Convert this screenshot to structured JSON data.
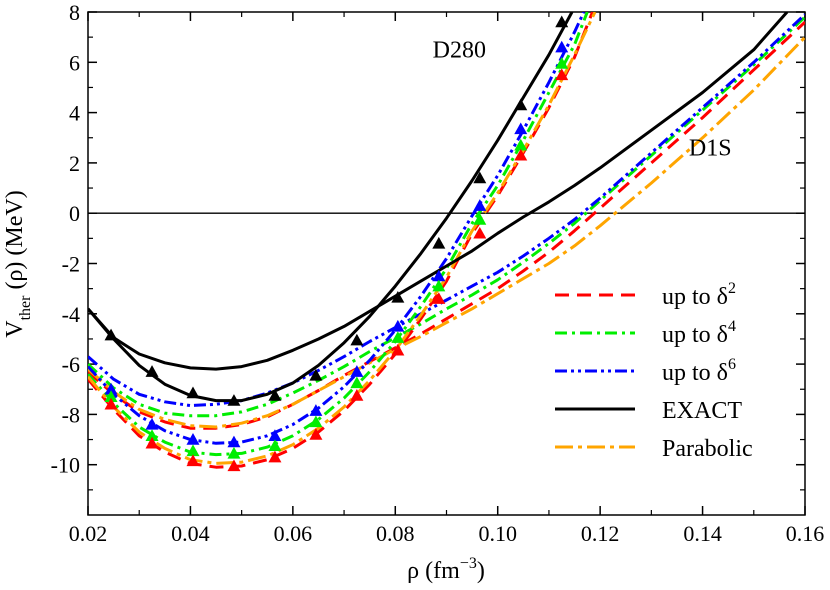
{
  "chart_data": {
    "type": "line",
    "xlim": [
      0.02,
      0.16
    ],
    "ylim": [
      -12,
      8
    ],
    "x_ticks": [
      0.02,
      0.04,
      0.06,
      0.08,
      0.1,
      0.12,
      0.14,
      0.16
    ],
    "x_tick_labels": [
      "0.02",
      "0.04",
      "0.06",
      "0.08",
      "0.10",
      "0.12",
      "0.14",
      "0.16"
    ],
    "y_ticks": [
      -10,
      -8,
      -6,
      -4,
      -2,
      0,
      2,
      4,
      6,
      8
    ],
    "y_tick_labels": [
      "-10",
      "-8",
      "-6",
      "-4",
      "-2",
      "0",
      "2",
      "4",
      "6",
      "8"
    ],
    "xlabel": {
      "main": "ρ (fm",
      "sup": "−3",
      "close": ")"
    },
    "ylabel": {
      "main": "V",
      "sub": "ther",
      "rest": " (ρ) (MeV)"
    },
    "zero_line": 0,
    "annotations": [
      {
        "name": "annotation-d280",
        "text": "D280",
        "x": 0.0925,
        "y": 6.2
      },
      {
        "name": "annotation-d1s",
        "text": "D1S",
        "x": 0.1415,
        "y": 2.3
      }
    ],
    "legend": {
      "position": "bottom-right",
      "entries": [
        {
          "name": "legend-up-to-d2",
          "label": "up to δ",
          "sup": "2",
          "color": "#ff0000",
          "dash": "14 8"
        },
        {
          "name": "legend-up-to-d4",
          "label": "up to δ",
          "sup": "4",
          "color": "#00ee00",
          "dash": "12 5 3 5"
        },
        {
          "name": "legend-up-to-d6",
          "label": "up to  δ",
          "sup": "6",
          "color": "#0000ff",
          "dash": "12 4 3 4 3 4"
        },
        {
          "name": "legend-exact",
          "label": "EXACT",
          "sup": "",
          "color": "#000000",
          "dash": ""
        },
        {
          "name": "legend-parabolic",
          "label": "Parabolic",
          "sup": "",
          "color": "#ffa500",
          "dash": "18 5 4 5"
        }
      ]
    },
    "series": [
      {
        "name": "D1S up to δ²",
        "model": "D1S",
        "color": "#ff0000",
        "dash": "14 8",
        "markers": false,
        "x": [
          0.02,
          0.025,
          0.03,
          0.035,
          0.04,
          0.045,
          0.05,
          0.055,
          0.06,
          0.065,
          0.07,
          0.075,
          0.08,
          0.085,
          0.09,
          0.095,
          0.1,
          0.105,
          0.11,
          0.115,
          0.12,
          0.13,
          0.14,
          0.15,
          0.16
        ],
        "y": [
          -6.3,
          -7.2,
          -7.9,
          -8.3,
          -8.55,
          -8.55,
          -8.4,
          -8.1,
          -7.6,
          -7.05,
          -6.45,
          -5.9,
          -5.35,
          -4.8,
          -4.2,
          -3.6,
          -3.0,
          -2.3,
          -1.55,
          -0.7,
          0.2,
          2.0,
          3.8,
          5.7,
          7.6
        ]
      },
      {
        "name": "D1S up to δ⁴",
        "model": "D1S",
        "color": "#00ee00",
        "dash": "12 5 3 5",
        "markers": false,
        "x": [
          0.02,
          0.025,
          0.03,
          0.035,
          0.04,
          0.045,
          0.05,
          0.055,
          0.06,
          0.065,
          0.07,
          0.075,
          0.08,
          0.085,
          0.09,
          0.095,
          0.1,
          0.105,
          0.11,
          0.115,
          0.12,
          0.13,
          0.14,
          0.15,
          0.16
        ],
        "y": [
          -6.0,
          -6.95,
          -7.6,
          -7.95,
          -8.05,
          -8.05,
          -7.9,
          -7.6,
          -7.15,
          -6.65,
          -6.1,
          -5.5,
          -4.95,
          -4.4,
          -3.8,
          -3.25,
          -2.65,
          -1.95,
          -1.2,
          -0.4,
          0.5,
          2.3,
          4.1,
          5.9,
          7.8
        ]
      },
      {
        "name": "D1S up to δ⁶",
        "model": "D1S",
        "color": "#0000ff",
        "dash": "12 4 3 4 3 4",
        "markers": false,
        "x": [
          0.02,
          0.025,
          0.03,
          0.035,
          0.04,
          0.045,
          0.05,
          0.055,
          0.06,
          0.065,
          0.07,
          0.075,
          0.08,
          0.085,
          0.09,
          0.095,
          0.1,
          0.105,
          0.11,
          0.115,
          0.12,
          0.13,
          0.14,
          0.15,
          0.16
        ],
        "y": [
          -5.7,
          -6.6,
          -7.2,
          -7.5,
          -7.65,
          -7.6,
          -7.45,
          -7.15,
          -6.75,
          -6.25,
          -5.7,
          -5.1,
          -4.55,
          -4.0,
          -3.45,
          -2.9,
          -2.35,
          -1.7,
          -1.0,
          -0.25,
          0.6,
          2.4,
          4.2,
          6.0,
          7.9
        ]
      },
      {
        "name": "D1S EXACT",
        "model": "D1S",
        "color": "#000000",
        "dash": "",
        "markers": false,
        "x": [
          0.02,
          0.025,
          0.03,
          0.035,
          0.04,
          0.045,
          0.05,
          0.055,
          0.06,
          0.065,
          0.07,
          0.075,
          0.08,
          0.085,
          0.09,
          0.095,
          0.1,
          0.105,
          0.11,
          0.115,
          0.12,
          0.13,
          0.14,
          0.15,
          0.1565
        ],
        "y": [
          -3.8,
          -4.95,
          -5.6,
          -5.95,
          -6.15,
          -6.2,
          -6.1,
          -5.85,
          -5.45,
          -5.0,
          -4.5,
          -3.9,
          -3.3,
          -2.7,
          -2.1,
          -1.5,
          -0.8,
          -0.15,
          0.45,
          1.1,
          1.8,
          3.3,
          4.8,
          6.5,
          8.0
        ]
      },
      {
        "name": "D1S Parabolic",
        "model": "D1S",
        "color": "#ffa500",
        "dash": "18 5 4 5",
        "markers": false,
        "x": [
          0.02,
          0.025,
          0.03,
          0.035,
          0.04,
          0.045,
          0.05,
          0.055,
          0.06,
          0.065,
          0.07,
          0.075,
          0.08,
          0.085,
          0.09,
          0.095,
          0.1,
          0.105,
          0.11,
          0.115,
          0.12,
          0.13,
          0.14,
          0.15,
          0.16
        ],
        "y": [
          -6.2,
          -7.1,
          -7.8,
          -8.2,
          -8.45,
          -8.5,
          -8.35,
          -8.05,
          -7.6,
          -7.05,
          -6.5,
          -5.95,
          -5.4,
          -4.9,
          -4.35,
          -3.8,
          -3.2,
          -2.6,
          -2.0,
          -1.3,
          -0.5,
          1.2,
          3.0,
          4.9,
          7.0
        ]
      },
      {
        "name": "D280 up to δ²",
        "model": "D280",
        "color": "#ff0000",
        "dash": "14 8",
        "markers": true,
        "x": [
          0.02,
          0.025,
          0.03,
          0.035,
          0.04,
          0.045,
          0.05,
          0.055,
          0.06,
          0.065,
          0.07,
          0.075,
          0.08,
          0.085,
          0.09,
          0.095,
          0.1,
          0.105,
          0.11,
          0.115,
          0.1185
        ],
        "y": [
          -6.6,
          -7.8,
          -8.85,
          -9.5,
          -9.95,
          -10.1,
          -10.05,
          -9.8,
          -9.35,
          -8.7,
          -7.85,
          -6.8,
          -5.6,
          -4.2,
          -2.7,
          -0.8,
          0.7,
          2.4,
          4.2,
          6.2,
          8.0
        ]
      },
      {
        "name": "D280 up to δ⁴",
        "model": "D280",
        "color": "#00ee00",
        "dash": "12 5 3 5",
        "markers": true,
        "x": [
          0.02,
          0.025,
          0.03,
          0.035,
          0.04,
          0.045,
          0.05,
          0.055,
          0.06,
          0.065,
          0.07,
          0.075,
          0.08,
          0.085,
          0.09,
          0.095,
          0.1,
          0.105,
          0.11,
          0.115,
          0.1175
        ],
        "y": [
          -6.4,
          -7.55,
          -8.5,
          -9.1,
          -9.5,
          -9.6,
          -9.55,
          -9.3,
          -8.85,
          -8.2,
          -7.35,
          -6.3,
          -5.1,
          -3.7,
          -2.2,
          -0.4,
          1.1,
          2.9,
          4.8,
          6.7,
          8.0
        ]
      },
      {
        "name": "D280 up to δ⁶",
        "model": "D280",
        "color": "#0000ff",
        "dash": "12 4 3 4 3 4",
        "markers": true,
        "x": [
          0.02,
          0.025,
          0.03,
          0.035,
          0.04,
          0.045,
          0.05,
          0.055,
          0.06,
          0.065,
          0.07,
          0.075,
          0.08,
          0.085,
          0.09,
          0.095,
          0.1,
          0.105,
          0.11,
          0.115,
          0.1168
        ],
        "y": [
          -6.1,
          -7.2,
          -8.05,
          -8.65,
          -9.0,
          -9.15,
          -9.1,
          -8.85,
          -8.4,
          -7.75,
          -6.9,
          -5.85,
          -4.65,
          -3.3,
          -1.8,
          -0.1,
          1.5,
          3.3,
          5.2,
          7.2,
          8.0
        ]
      },
      {
        "name": "D280 EXACT",
        "model": "D280",
        "color": "#000000",
        "dash": "",
        "markers": true,
        "x": [
          0.02,
          0.025,
          0.03,
          0.035,
          0.04,
          0.045,
          0.05,
          0.055,
          0.06,
          0.065,
          0.07,
          0.075,
          0.08,
          0.085,
          0.09,
          0.095,
          0.1,
          0.105,
          0.11,
          0.1145
        ],
        "y": [
          -3.8,
          -5.0,
          -6.05,
          -6.8,
          -7.25,
          -7.45,
          -7.45,
          -7.2,
          -6.75,
          -6.05,
          -5.15,
          -4.1,
          -2.9,
          -1.6,
          -0.2,
          1.3,
          2.9,
          4.6,
          6.3,
          8.0
        ]
      },
      {
        "name": "D280 Parabolic",
        "model": "D280",
        "color": "#ffa500",
        "dash": "18 5 4 5",
        "markers": true,
        "x": [
          0.02,
          0.025,
          0.03,
          0.035,
          0.04,
          0.045,
          0.05,
          0.055,
          0.06,
          0.065,
          0.07,
          0.075,
          0.08,
          0.085,
          0.09,
          0.095,
          0.1,
          0.105,
          0.11,
          0.115,
          0.119
        ],
        "y": [
          -6.5,
          -7.7,
          -8.7,
          -9.35,
          -9.8,
          -9.95,
          -9.9,
          -9.65,
          -9.2,
          -8.55,
          -7.7,
          -6.65,
          -5.45,
          -4.05,
          -2.55,
          -0.7,
          0.8,
          2.5,
          4.3,
          6.3,
          8.0
        ]
      }
    ],
    "markers": {
      "D280 EXACT": {
        "x": [
          0.0245,
          0.0325,
          0.0405,
          0.0485,
          0.0565,
          0.0645,
          0.0725,
          0.0805,
          0.0885,
          0.0965,
          0.1045,
          0.1125
        ],
        "y": [
          -4.85,
          -6.3,
          -7.15,
          -7.45,
          -7.25,
          -6.45,
          -5.05,
          -3.35,
          -1.2,
          1.4,
          4.3,
          7.6
        ]
      },
      "D280 up to δ⁶": {
        "x": [
          0.0245,
          0.0325,
          0.0405,
          0.0485,
          0.0565,
          0.0645,
          0.0725,
          0.0805,
          0.0885,
          0.0965,
          0.1045,
          0.1125
        ],
        "y": [
          -7.0,
          -8.4,
          -9.0,
          -9.1,
          -8.85,
          -7.85,
          -6.3,
          -4.5,
          -2.5,
          0.3,
          3.35,
          6.6
        ]
      },
      "D280 up to δ⁴": {
        "x": [
          0.0245,
          0.0325,
          0.0405,
          0.0485,
          0.0565,
          0.0645,
          0.0725,
          0.0805,
          0.0885,
          0.0965,
          0.1045,
          0.1125
        ],
        "y": [
          -7.3,
          -8.85,
          -9.45,
          -9.55,
          -9.25,
          -8.3,
          -6.75,
          -4.95,
          -2.9,
          -0.25,
          2.7,
          5.95
        ]
      },
      "D280 up to δ²": {
        "x": [
          0.0245,
          0.0325,
          0.0405,
          0.0485,
          0.0565,
          0.0645,
          0.0725,
          0.0805,
          0.0885,
          0.0965,
          0.1045,
          0.1125
        ],
        "y": [
          -7.6,
          -9.15,
          -9.85,
          -10.05,
          -9.7,
          -8.8,
          -7.25,
          -5.45,
          -3.4,
          -0.8,
          2.3,
          5.5
        ]
      }
    }
  }
}
